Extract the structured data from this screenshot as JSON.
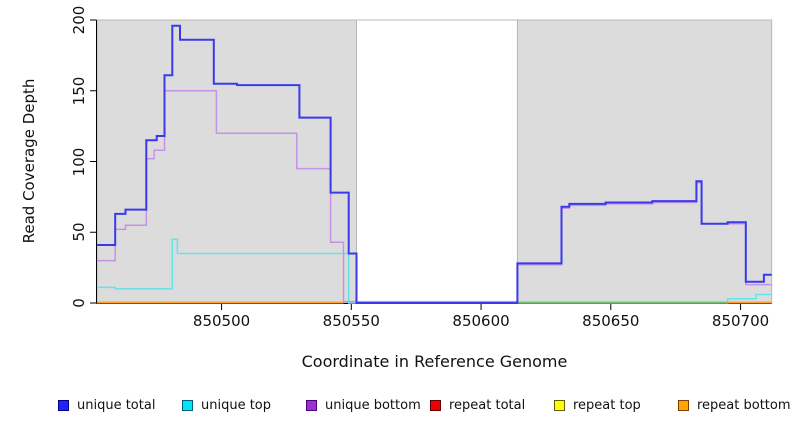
{
  "figure": {
    "xlabel": "Coordinate in Reference Genome",
    "ylabel": "Read Coverage Depth"
  },
  "chart_data": {
    "type": "line",
    "subtype": "step-after-coverage",
    "title": "",
    "xlabel": "Coordinate in Reference Genome",
    "ylabel": "Read Coverage Depth",
    "xlim": [
      850452,
      850712
    ],
    "ylim": [
      0,
      200
    ],
    "x_ticks": [
      850500,
      850550,
      850600,
      850650,
      850700
    ],
    "y_ticks": [
      0,
      50,
      100,
      150,
      200
    ],
    "grid": false,
    "plot_background": "#ffffff",
    "shaded_bands": [
      {
        "from": 850452,
        "to": 850552,
        "color": "#dcdcdc"
      },
      {
        "from": 850614,
        "to": 850712,
        "color": "#dcdcdc"
      }
    ],
    "gap_region": {
      "from": 850552,
      "to": 850614,
      "color": "#ffffff"
    },
    "series": [
      {
        "name": "unique total",
        "color": "#3a3aec",
        "width": 2,
        "points": [
          [
            850452,
            41
          ],
          [
            850459,
            63
          ],
          [
            850463,
            66
          ],
          [
            850471,
            115
          ],
          [
            850475,
            118
          ],
          [
            850478,
            161
          ],
          [
            850481,
            196
          ],
          [
            850484,
            186
          ],
          [
            850497,
            155
          ],
          [
            850506,
            154
          ],
          [
            850530,
            131
          ],
          [
            850542,
            78
          ],
          [
            850549,
            35
          ],
          [
            850552,
            0
          ],
          [
            850614,
            28
          ],
          [
            850631,
            68
          ],
          [
            850634,
            70
          ],
          [
            850648,
            71
          ],
          [
            850666,
            72
          ],
          [
            850683,
            86
          ],
          [
            850685,
            56
          ],
          [
            850695,
            57
          ],
          [
            850702,
            15
          ],
          [
            850709,
            20
          ],
          [
            850712,
            20
          ]
        ]
      },
      {
        "name": "unique top",
        "color": "#63e3ec",
        "width": 1.5,
        "points": [
          [
            850452,
            11
          ],
          [
            850459,
            10
          ],
          [
            850481,
            45
          ],
          [
            850483,
            35
          ],
          [
            850549,
            0
          ],
          [
            850695,
            3
          ],
          [
            850706,
            6
          ],
          [
            850712,
            6
          ]
        ]
      },
      {
        "name": "unique bottom",
        "color": "#c493e8",
        "width": 1.5,
        "points": [
          [
            850452,
            30
          ],
          [
            850459,
            52
          ],
          [
            850463,
            55
          ],
          [
            850471,
            102
          ],
          [
            850474,
            108
          ],
          [
            850478,
            150
          ],
          [
            850498,
            120
          ],
          [
            850529,
            95
          ],
          [
            850542,
            43
          ],
          [
            850547,
            1
          ],
          [
            850614,
            27
          ],
          [
            850631,
            67
          ],
          [
            850634,
            69
          ],
          [
            850648,
            70
          ],
          [
            850666,
            71
          ],
          [
            850683,
            85
          ],
          [
            850685,
            56
          ],
          [
            850702,
            13
          ],
          [
            850712,
            13
          ]
        ]
      },
      {
        "name": "repeat total",
        "color": "#ee0000",
        "width": 1.5,
        "draw": false,
        "points": [
          [
            850452,
            0
          ],
          [
            850712,
            0
          ]
        ]
      },
      {
        "name": "repeat top",
        "color": "#ffff00",
        "width": 1.5,
        "draw": false,
        "points": [
          [
            850452,
            0
          ],
          [
            850712,
            0
          ]
        ]
      },
      {
        "name": "repeat bottom",
        "color": "#ffa033",
        "width": 1.5,
        "draw": false,
        "points": [
          [
            850452,
            0
          ],
          [
            850712,
            0
          ]
        ]
      }
    ],
    "zero_line_segments": [
      {
        "from": 850452,
        "to": 850547,
        "value": 0,
        "color": "#ffa033"
      },
      {
        "from": 850614,
        "to": 850695,
        "value": 0,
        "color": "#74c476"
      },
      {
        "from": 850695,
        "to": 850712,
        "value": 0,
        "color": "#ffa033"
      }
    ],
    "legend_position": "bottom"
  },
  "legend": {
    "items": [
      {
        "label": "unique total",
        "color": "#2222ff",
        "border": "#000080"
      },
      {
        "label": "unique top",
        "color": "#00e5f0",
        "border": "#005f80"
      },
      {
        "label": "unique bottom",
        "color": "#9932cc",
        "border": "#4b0082"
      },
      {
        "label": "repeat total",
        "color": "#ee0000",
        "border": "#600000"
      },
      {
        "label": "repeat top",
        "color": "#ffff00",
        "border": "#606000"
      },
      {
        "label": "repeat bottom",
        "color": "#ffa500",
        "border": "#804000"
      }
    ]
  }
}
